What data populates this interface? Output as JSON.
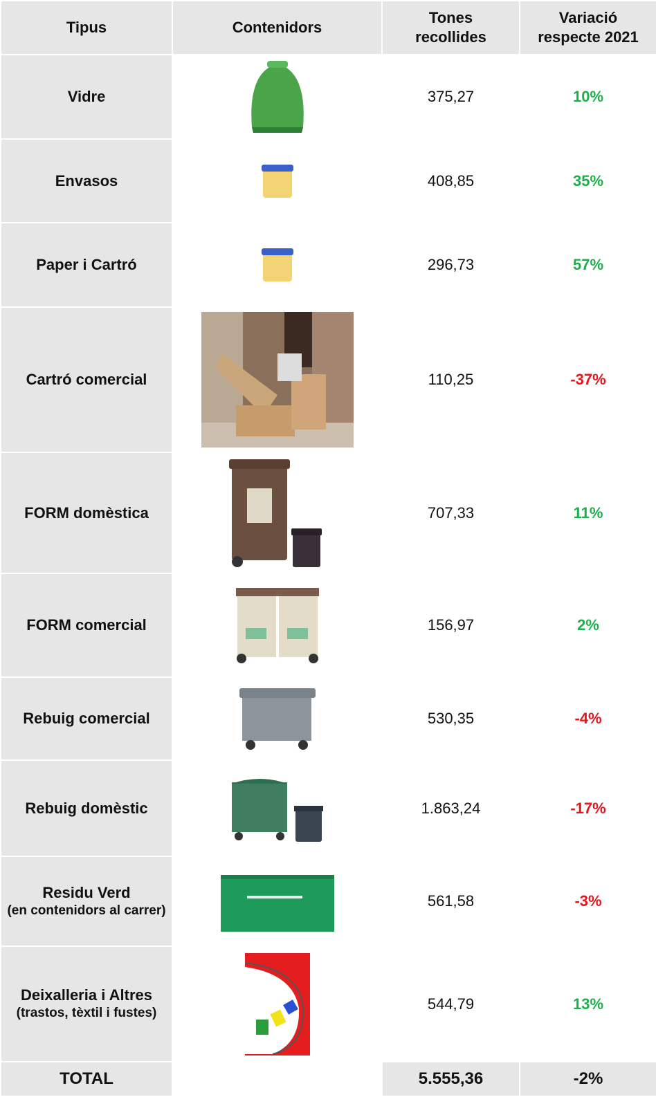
{
  "header": {
    "tipus": "Tipus",
    "contenidors": "Contenidors",
    "tones": "Tones recollides",
    "variacio": "Variació respecte 2021"
  },
  "rows": [
    {
      "tipus": "Vidre",
      "tones": "375,27",
      "variacio": "10%"
    },
    {
      "tipus": "Envasos",
      "tones": "408,85",
      "variacio": "35%"
    },
    {
      "tipus": "Paper i Cartró",
      "tones": "296,73",
      "variacio": "57%"
    },
    {
      "tipus": "Cartró comercial",
      "tones": "110,25",
      "variacio": "-37%"
    },
    {
      "tipus": "FORM domèstica",
      "tones": "707,33",
      "variacio": "11%"
    },
    {
      "tipus": "FORM comercial",
      "tones": "156,97",
      "variacio": "2%"
    },
    {
      "tipus": "Rebuig comercial",
      "tones": "530,35",
      "variacio": "-4%"
    },
    {
      "tipus": "Rebuig domèstic",
      "tones": "1.863,24",
      "variacio": "-17%"
    },
    {
      "tipus": "Residu Verd",
      "detail": "(en contenidors al carrer)",
      "tones": "561,58",
      "variacio": "-3%"
    },
    {
      "tipus": "Deixalleria i Altres",
      "detail": "(trastos, tèxtil i fustes)",
      "tones": "544,79",
      "variacio": "13%"
    }
  ],
  "total": {
    "label": "TOTAL",
    "tones": "5.555,36",
    "variacio": "-2%"
  }
}
